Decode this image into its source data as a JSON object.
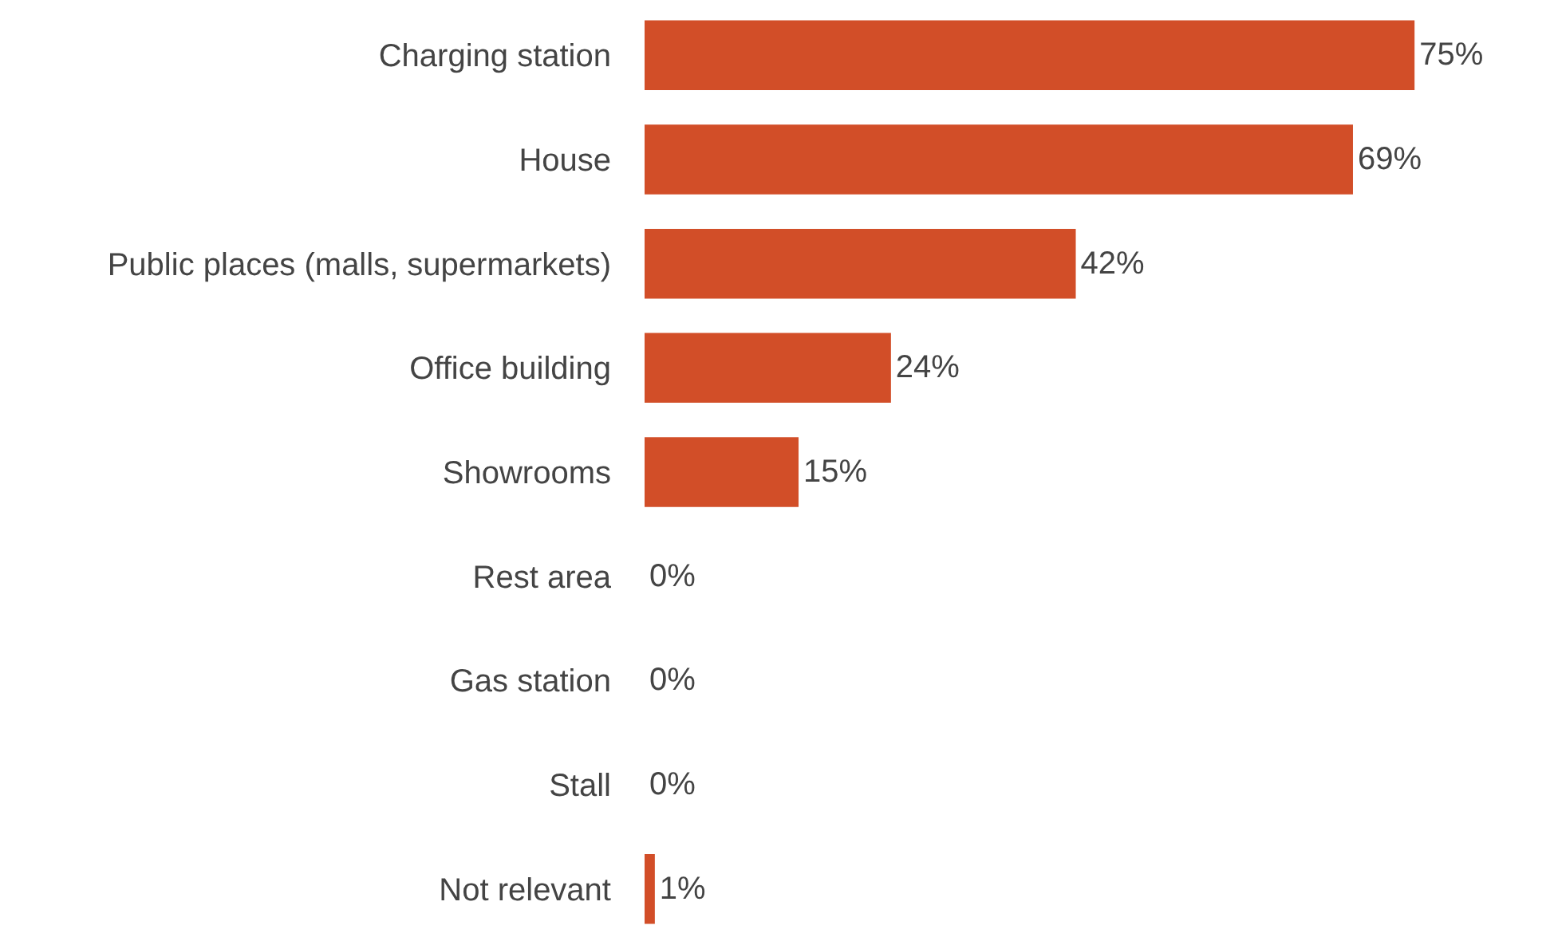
{
  "chart_data": {
    "type": "bar",
    "orientation": "horizontal",
    "categories": [
      "Charging station",
      "House",
      "Public places (malls, supermarkets)",
      "Office building",
      "Showrooms",
      "Rest area",
      "Gas station",
      "Stall",
      "Not relevant"
    ],
    "values": [
      75,
      69,
      42,
      24,
      15,
      0,
      0,
      0,
      1
    ],
    "value_labels": [
      "75%",
      "69%",
      "42%",
      "24%",
      "15%",
      "0%",
      "0%",
      "0%",
      "1%"
    ],
    "color": "#d24e28"
  }
}
